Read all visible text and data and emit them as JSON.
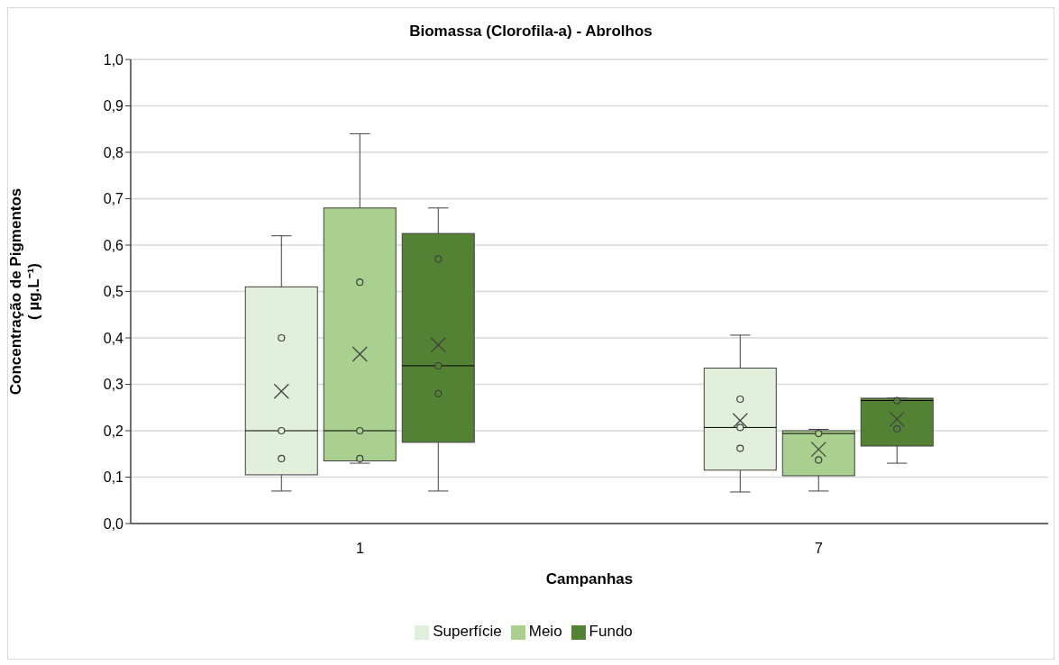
{
  "chart_data": {
    "type": "box",
    "title": "Biomassa (Clorofila-a) - Abrolhos",
    "xlabel": "Campanhas",
    "ylabel": "Concentração de Pigmentos\n( µg.L⁻¹)",
    "categories": [
      "1",
      "7"
    ],
    "ylim": [
      0,
      1
    ],
    "yticks": [
      {
        "value": 0,
        "label": "0,0"
      },
      {
        "value": 0.1,
        "label": "0,1"
      },
      {
        "value": 0.2,
        "label": "0,2"
      },
      {
        "value": 0.3,
        "label": "0,3"
      },
      {
        "value": 0.4,
        "label": "0,4"
      },
      {
        "value": 0.5,
        "label": "0,5"
      },
      {
        "value": 0.6,
        "label": "0,6"
      },
      {
        "value": 0.7,
        "label": "0,7"
      },
      {
        "value": 0.8,
        "label": "0,8"
      },
      {
        "value": 0.9,
        "label": "0,9"
      },
      {
        "value": 1,
        "label": "1,0"
      }
    ],
    "grid": "y",
    "legend": "bottom",
    "series": [
      {
        "name": "Superfície",
        "color": "#e2efda",
        "boxes": [
          {
            "low": 0.07,
            "q1": 0.105,
            "median": 0.2,
            "q3": 0.51,
            "high": 0.62,
            "mean": 0.285
          },
          {
            "low": 0.068,
            "q1": 0.115,
            "median": 0.207,
            "q3": 0.335,
            "high": 0.406,
            "mean": 0.222
          }
        ]
      },
      {
        "name": "Meio",
        "color": "#a9d08e",
        "boxes": [
          {
            "low": 0.13,
            "q1": 0.135,
            "median": 0.2,
            "q3": 0.68,
            "high": 0.84,
            "mean": 0.365
          },
          {
            "low": 0.07,
            "q1": 0.103,
            "median": 0.194,
            "q3": 0.2,
            "high": 0.203,
            "mean": 0.16
          }
        ]
      },
      {
        "name": "Fundo",
        "color": "#548235",
        "boxes": [
          {
            "low": 0.07,
            "q1": 0.175,
            "median": 0.34,
            "q3": 0.625,
            "high": 0.68,
            "mean": 0.385
          },
          {
            "low": 0.13,
            "q1": 0.167,
            "median": 0.265,
            "q3": 0.27,
            "high": 0.27,
            "mean": 0.225
          }
        ]
      },
      {
        "type": "scatter",
        "color": "#404040",
        "x": [
          "1",
          "1",
          "1",
          "7",
          "7",
          "7"
        ],
        "values": [
          0.4,
          0.2,
          0.14,
          0.268,
          0.207,
          0.162
        ]
      },
      {
        "type": "scatter",
        "color": "#404040",
        "x": [
          "1",
          "1",
          "1",
          "7",
          "7"
        ],
        "values": [
          0.52,
          0.2,
          0.14,
          0.194,
          0.137
        ]
      },
      {
        "type": "scatter",
        "color": "#404040",
        "x": [
          "1",
          "1",
          "1",
          "7",
          "7"
        ],
        "values": [
          0.57,
          0.34,
          0.28,
          0.265,
          0.204
        ]
      }
    ]
  }
}
